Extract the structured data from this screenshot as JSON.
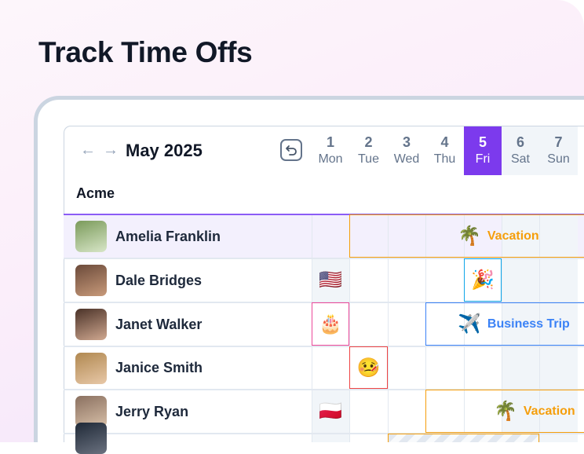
{
  "headline": "Track Time Offs",
  "calendar": {
    "month": "May 2025",
    "company": "Acme",
    "days": [
      {
        "num": "1",
        "weekday": "Mon"
      },
      {
        "num": "2",
        "weekday": "Tue"
      },
      {
        "num": "3",
        "weekday": "Wed"
      },
      {
        "num": "4",
        "weekday": "Thu"
      },
      {
        "num": "5",
        "weekday": "Fri",
        "today": true
      },
      {
        "num": "6",
        "weekday": "Sat",
        "weekend": true
      },
      {
        "num": "7",
        "weekday": "Sun",
        "weekend": true
      }
    ],
    "people": [
      {
        "name": "Amelia Franklin",
        "selected": true
      },
      {
        "name": "Dale Bridges"
      },
      {
        "name": "Janet Walker"
      },
      {
        "name": "Janice Smith"
      },
      {
        "name": "Jerry Ryan"
      }
    ],
    "events": {
      "amelia_vacation": {
        "label": "Vacation",
        "emoji": "🌴",
        "color": "#f59e0b"
      },
      "dale_holiday": {
        "emoji": "🇺🇸"
      },
      "dale_party": {
        "emoji": "🎉",
        "color": "#0ea5e9"
      },
      "janet_birthday": {
        "emoji": "🎂",
        "color": "#ec4899"
      },
      "janet_trip": {
        "label": "Business Trip",
        "emoji": "✈️",
        "color": "#3b82f6"
      },
      "janice_sick": {
        "emoji": "🤒",
        "color": "#ef4444"
      },
      "jerry_holiday": {
        "emoji": "🇵🇱"
      },
      "jerry_vacation": {
        "label": "Vacation",
        "emoji": "🌴",
        "color": "#f59e0b"
      }
    },
    "colors": {
      "accent": "#7c3aed",
      "selected_row": "#f3f0fd"
    }
  }
}
